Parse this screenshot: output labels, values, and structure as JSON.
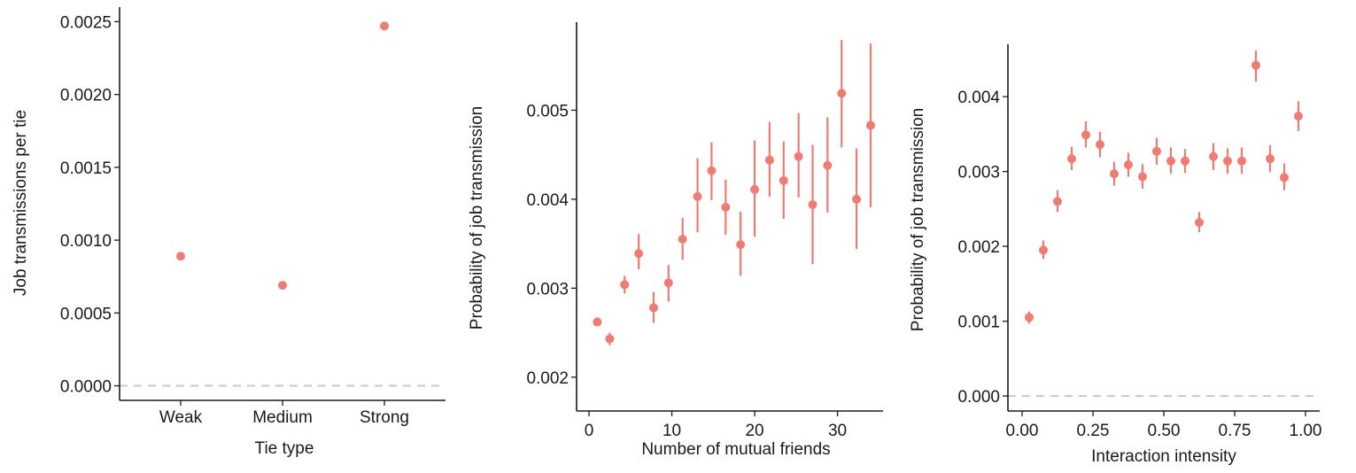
{
  "colors": {
    "point": "#EF7B72",
    "zero_line": "#c8c8c8",
    "axis": "#1a1a1a"
  },
  "chart_data": [
    {
      "type": "scatter",
      "xlabel": "Tie type",
      "ylabel": "Job transmissions per tie",
      "categories": [
        "Weak",
        "Medium",
        "Strong"
      ],
      "values": [
        0.00089,
        0.00069,
        0.00247
      ],
      "ylim": [
        -0.0001,
        0.0026
      ],
      "yticks": [
        0.0,
        0.0005,
        0.001,
        0.0015,
        0.002,
        0.0025
      ],
      "ytick_labels": [
        "0.0000",
        "0.0005",
        "0.0010",
        "0.0015",
        "0.0020",
        "0.0025"
      ],
      "zero_reference_line": true,
      "grid": false
    },
    {
      "type": "scatter",
      "xlabel": "Number of mutual friends",
      "ylabel": "Probability of job transmission",
      "x": [
        1,
        2.5,
        4.3,
        6,
        7.8,
        9.6,
        11.3,
        13.1,
        14.8,
        16.5,
        18.3,
        20,
        21.8,
        23.5,
        25.3,
        27,
        28.8,
        30.5,
        32.3,
        34
      ],
      "y": [
        0.00262,
        0.00243,
        0.00304,
        0.00339,
        0.00278,
        0.00306,
        0.00355,
        0.00403,
        0.00432,
        0.00391,
        0.00349,
        0.00411,
        0.00444,
        0.00421,
        0.00448,
        0.00394,
        0.00438,
        0.00519,
        0.004,
        0.00483
      ],
      "y_lower": [
        0.00257,
        0.00236,
        0.00294,
        0.00321,
        0.00261,
        0.00285,
        0.00332,
        0.00363,
        0.00399,
        0.0036,
        0.00314,
        0.00358,
        0.00403,
        0.00378,
        0.00402,
        0.00327,
        0.00385,
        0.00458,
        0.00344,
        0.00391
      ],
      "y_upper": [
        0.00267,
        0.0025,
        0.00314,
        0.00361,
        0.00296,
        0.00326,
        0.00379,
        0.00446,
        0.00464,
        0.00422,
        0.00386,
        0.00466,
        0.00487,
        0.00465,
        0.00497,
        0.00461,
        0.00492,
        0.00579,
        0.00457,
        0.00575
      ],
      "xlim": [
        -1.5,
        35.5
      ],
      "xticks": [
        0,
        10,
        20,
        30
      ],
      "xtick_labels": [
        "0",
        "10",
        "20",
        "30"
      ],
      "ylim": [
        0.00162,
        0.00599
      ],
      "yticks": [
        0.002,
        0.003,
        0.004,
        0.005
      ],
      "ytick_labels": [
        "0.002",
        "0.003",
        "0.004",
        "0.005"
      ],
      "error_bars": true,
      "grid": false
    },
    {
      "type": "scatter",
      "xlabel": "Interaction intensity",
      "ylabel": "Probability of job transmission",
      "x": [
        0.025,
        0.075,
        0.125,
        0.175,
        0.225,
        0.275,
        0.325,
        0.375,
        0.425,
        0.475,
        0.525,
        0.575,
        0.625,
        0.675,
        0.725,
        0.775,
        0.825,
        0.875,
        0.925,
        0.975
      ],
      "y": [
        0.00105,
        0.00195,
        0.0026,
        0.00317,
        0.00349,
        0.00336,
        0.00297,
        0.00309,
        0.00293,
        0.00327,
        0.00314,
        0.00314,
        0.00232,
        0.0032,
        0.00314,
        0.00314,
        0.00442,
        0.00317,
        0.00292,
        0.00374
      ],
      "y_lower": [
        0.00097,
        0.00183,
        0.00246,
        0.00302,
        0.00332,
        0.00319,
        0.00281,
        0.00293,
        0.00277,
        0.00309,
        0.00297,
        0.00298,
        0.00219,
        0.00302,
        0.00297,
        0.00297,
        0.0042,
        0.00299,
        0.00275,
        0.00354
      ],
      "y_upper": [
        0.00113,
        0.00208,
        0.00275,
        0.00333,
        0.00367,
        0.00353,
        0.00313,
        0.00325,
        0.0031,
        0.00345,
        0.00332,
        0.0033,
        0.00246,
        0.00338,
        0.00331,
        0.00332,
        0.00462,
        0.00335,
        0.00311,
        0.00394
      ],
      "xlim": [
        -0.05,
        1.05
      ],
      "xticks": [
        0.0,
        0.25,
        0.5,
        0.75,
        1.0
      ],
      "xtick_labels": [
        "0.00",
        "0.25",
        "0.50",
        "0.75",
        "1.00"
      ],
      "ylim": [
        -0.0002,
        0.0047
      ],
      "yticks": [
        0.0,
        0.001,
        0.002,
        0.003,
        0.004
      ],
      "ytick_labels": [
        "0.000",
        "0.001",
        "0.002",
        "0.003",
        "0.004"
      ],
      "error_bars": true,
      "zero_reference_line": true,
      "grid": false
    }
  ]
}
